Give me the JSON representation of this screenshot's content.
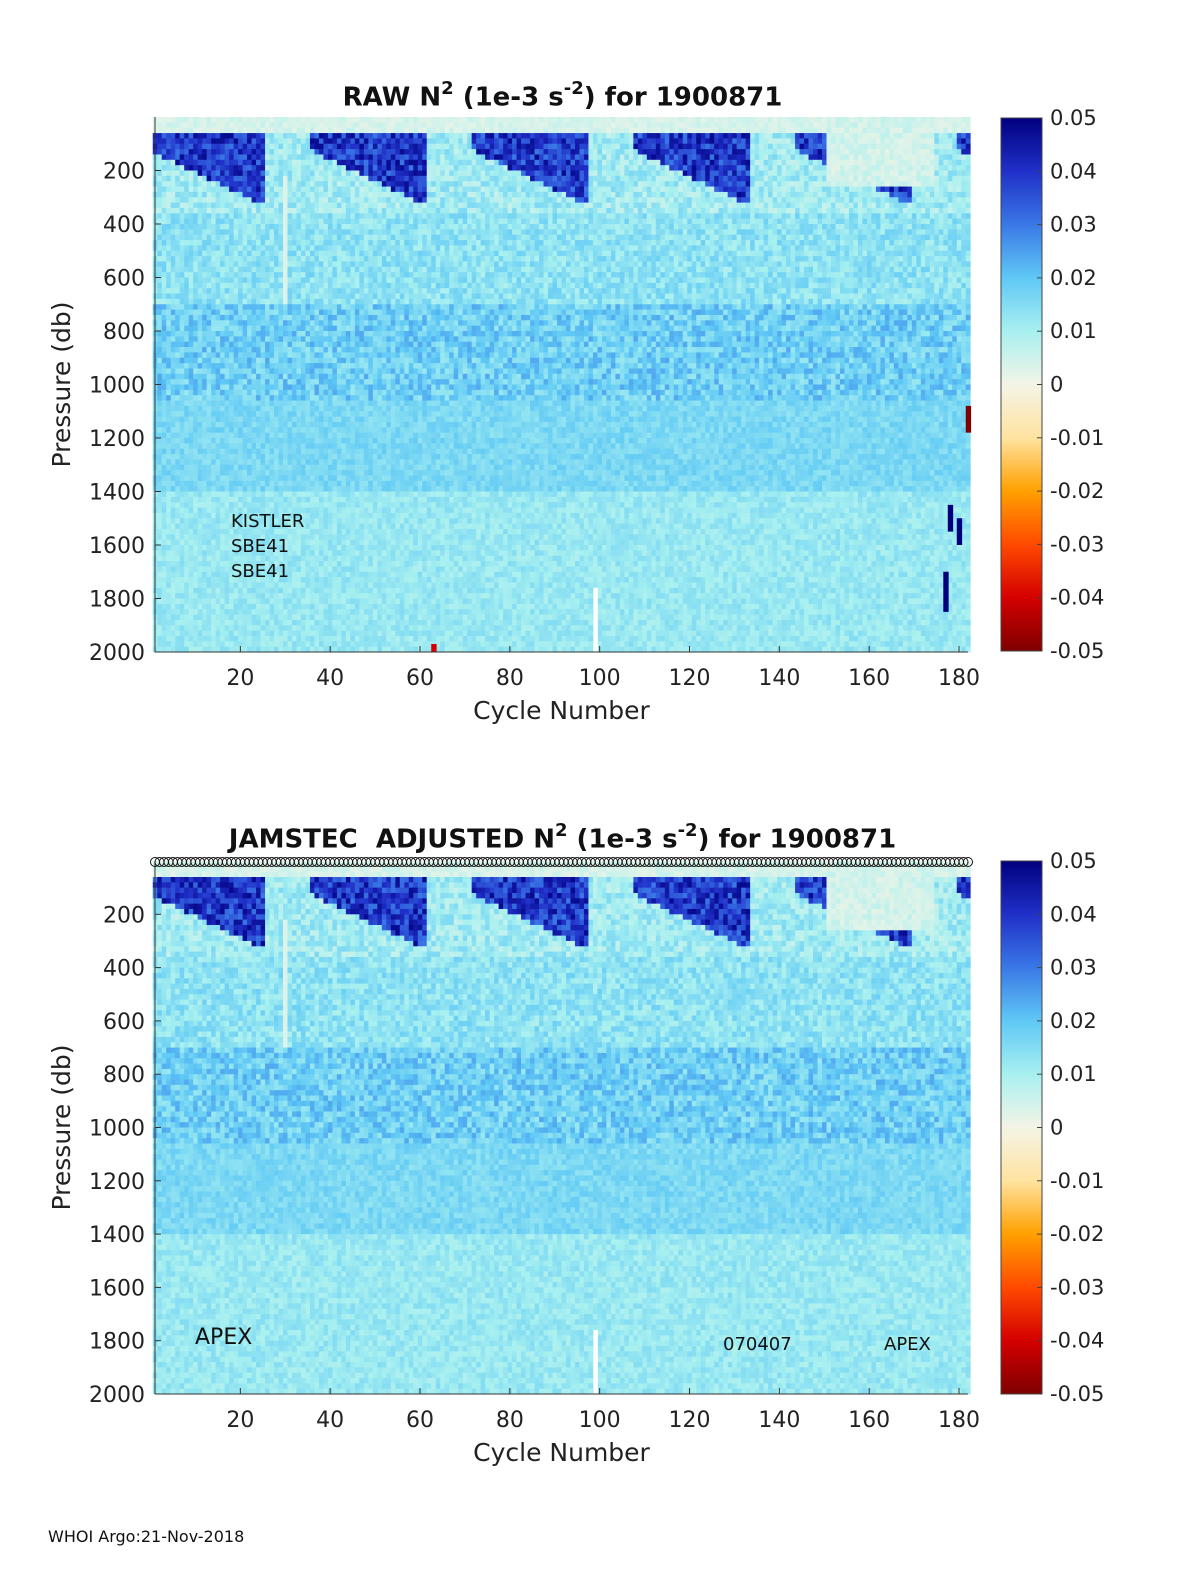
{
  "chart_data": [
    {
      "type": "heatmap",
      "title_main": "RAW N",
      "title_sup": "2",
      "title_units_pre": " (1e-3 s",
      "title_units_sup": "-2",
      "title_units_post": ") for 1900871",
      "xlabel": "Cycle Number",
      "ylabel": "Pressure (db)",
      "x_range": [
        1,
        182
      ],
      "y_range": [
        0,
        2000
      ],
      "y_reversed": true,
      "x_ticks": [
        20,
        40,
        60,
        80,
        100,
        120,
        140,
        160,
        180
      ],
      "y_ticks": [
        200,
        400,
        600,
        800,
        1000,
        1200,
        1400,
        1600,
        1800,
        2000
      ],
      "colorbar": {
        "range": [
          -0.05,
          0.05
        ],
        "ticks": [
          "0.05",
          "0.04",
          "0.03",
          "0.02",
          "0.01",
          "0",
          "-0.01",
          "-0.02",
          "-0.03",
          "-0.04",
          "-0.05"
        ],
        "colormap": [
          "#7f0000",
          "#d40000",
          "#ff4a00",
          "#ffa000",
          "#ffe3a0",
          "#f4f4e6",
          "#a8f0f0",
          "#5fc8f5",
          "#3a78e6",
          "#2030c8",
          "#00007f"
        ]
      },
      "annotations": [
        "KISTLER",
        "SBE41",
        "SBE41"
      ],
      "anomalies": [
        {
          "cycle": 182,
          "p_from": 1080,
          "p_to": 1180,
          "value": -0.05
        },
        {
          "cycle": 178,
          "p_from": 1450,
          "p_to": 1550,
          "value": 0.05
        },
        {
          "cycle": 180,
          "p_from": 1500,
          "p_to": 1600,
          "value": 0.05
        },
        {
          "cycle": 177,
          "p_from": 1700,
          "p_to": 1850,
          "value": 0.05
        },
        {
          "cycle": 63,
          "p_from": 1970,
          "p_to": 2000,
          "value": -0.04
        }
      ]
    },
    {
      "type": "heatmap",
      "title_main": "JAMSTEC  ADJUSTED N",
      "title_sup": "2",
      "title_units_pre": " (1e-3 s",
      "title_units_sup": "-2",
      "title_units_post": ") for 1900871",
      "xlabel": "Cycle Number",
      "ylabel": "Pressure (db)",
      "x_range": [
        1,
        182
      ],
      "y_range": [
        0,
        2000
      ],
      "y_reversed": true,
      "x_ticks": [
        20,
        40,
        60,
        80,
        100,
        120,
        140,
        160,
        180
      ],
      "y_ticks": [
        200,
        400,
        600,
        800,
        1000,
        1200,
        1400,
        1600,
        1800,
        2000
      ],
      "colorbar": {
        "range": [
          -0.05,
          0.05
        ],
        "ticks": [
          "0.05",
          "0.04",
          "0.03",
          "0.02",
          "0.01",
          "0",
          "-0.01",
          "-0.02",
          "-0.03",
          "-0.04",
          "-0.05"
        ],
        "colormap": [
          "#7f0000",
          "#d40000",
          "#ff4a00",
          "#ffa000",
          "#ffe3a0",
          "#f4f4e6",
          "#a8f0f0",
          "#5fc8f5",
          "#3a78e6",
          "#2030c8",
          "#00007f"
        ]
      },
      "annotations": [
        "APEX",
        "070407",
        "APEX"
      ],
      "surface_markers": "circles at every cycle"
    }
  ],
  "footer": "WHOI Argo:21-Nov-2018"
}
